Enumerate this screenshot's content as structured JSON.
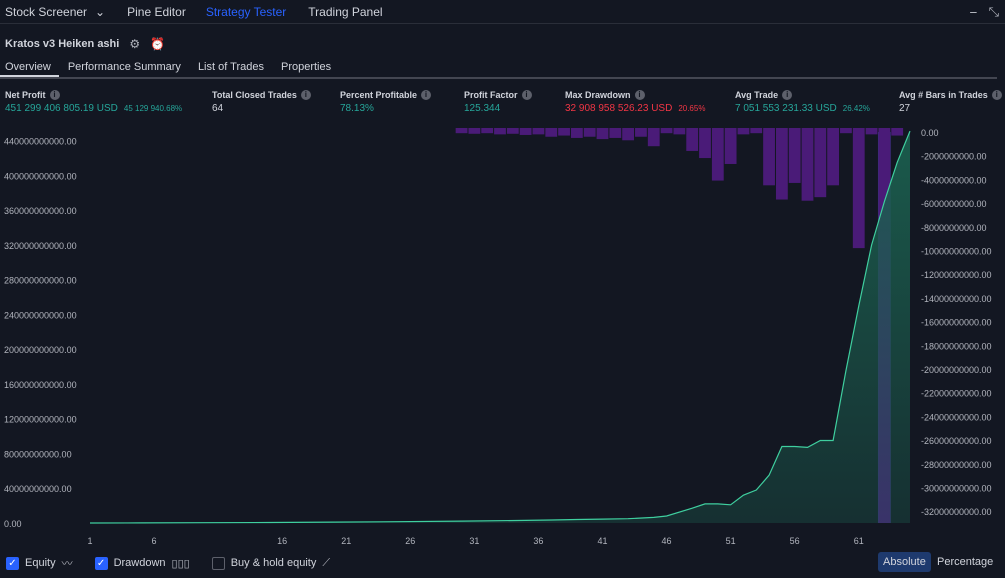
{
  "topbar": {
    "tabs": [
      {
        "label": "Stock Screener"
      },
      {
        "label": "⌄"
      },
      {
        "label": "Pine Editor"
      },
      {
        "label": "Strategy Tester"
      },
      {
        "label": "Trading Panel"
      }
    ],
    "minimize_icon": "minimize-icon",
    "collapse_icon": "collapse-icon"
  },
  "strategy": {
    "name": "Kratos v3 Heiken ashi",
    "settings_icon": "gear-icon",
    "alert_icon": "alarm-clock-icon"
  },
  "tabs": [
    {
      "label": "Overview"
    },
    {
      "label": "Performance Summary"
    },
    {
      "label": "List of Trades"
    },
    {
      "label": "Properties"
    }
  ],
  "metrics": {
    "net_profit": {
      "label": "Net Profit",
      "value": "451 299 406 805.19 USD",
      "sub": "45 129 940.68%"
    },
    "closed_trades": {
      "label": "Total Closed Trades",
      "value": "64"
    },
    "percent_profitable": {
      "label": "Percent Profitable",
      "value": "78.13%"
    },
    "profit_factor": {
      "label": "Profit Factor",
      "value": "125.344"
    },
    "max_drawdown": {
      "label": "Max Drawdown",
      "value": "32 908 958 526.23 USD",
      "sub": "20.65%"
    },
    "avg_trade": {
      "label": "Avg Trade",
      "value": "7 051 553 231.33 USD",
      "sub": "26.42%"
    },
    "avg_bars": {
      "label": "Avg # Bars in Trades",
      "value": "27"
    }
  },
  "colors": {
    "equity_line": "#3fcf9f",
    "equity_fill": "#1b5e4e",
    "drawdown": "#4a1b78",
    "highlight": "#3d3a8c",
    "accent": "#2962ff",
    "positive": "#26a69a",
    "negative": "#f23645"
  },
  "chart_data": {
    "type": "area",
    "x_ticks": [
      "1",
      "6",
      "16",
      "21",
      "26",
      "31",
      "36",
      "41",
      "46",
      "51",
      "56",
      "61"
    ],
    "y_left_ticks": [
      "440000000000.00",
      "400000000000.00",
      "360000000000.00",
      "320000000000.00",
      "280000000000.00",
      "240000000000.00",
      "200000000000.00",
      "160000000000.00",
      "120000000000.00",
      "80000000000.00",
      "40000000000.00",
      "0.00"
    ],
    "y_right_ticks": [
      "0.00",
      "-2000000000.00",
      "-4000000000.00",
      "-6000000000.00",
      "-8000000000.00",
      "-10000000000.00",
      "-12000000000.00",
      "-14000000000.00",
      "-16000000000.00",
      "-18000000000.00",
      "-20000000000.00",
      "-22000000000.00",
      "-24000000000.00",
      "-26000000000.00",
      "-28000000000.00",
      "-30000000000.00",
      "-32000000000.00"
    ],
    "ylim_left": [
      0,
      450000000000
    ],
    "ylim_right": [
      -33000000000,
      0
    ],
    "x_range": [
      1,
      65
    ],
    "series": [
      {
        "kind": "equity",
        "x": [
          1,
          5,
          10,
          15,
          20,
          25,
          30,
          35,
          37,
          39,
          41,
          43,
          45,
          46,
          48,
          49,
          50,
          51,
          52,
          53,
          54,
          55,
          56,
          57,
          58,
          59,
          60,
          61,
          62,
          63,
          64,
          65
        ],
        "values": [
          0,
          150000000,
          300000000,
          600000000,
          1000000000,
          1500000000,
          2200000000,
          3000000000,
          3500000000,
          4000000000,
          4500000000,
          5000000000,
          6500000000,
          8000000000,
          17000000000,
          22000000000,
          22000000000,
          21000000000,
          32000000000,
          38000000000,
          55000000000,
          88000000000,
          88000000000,
          87000000000,
          95000000000,
          95000000000,
          175000000000,
          250000000000,
          320000000000,
          370000000000,
          415000000000,
          451000000000
        ]
      },
      {
        "kind": "drawdown",
        "x": [
          30,
          31,
          32,
          33,
          34,
          35,
          36,
          37,
          38,
          39,
          40,
          41,
          42,
          43,
          44,
          45,
          46,
          47,
          48,
          49,
          50,
          51,
          52,
          53,
          54,
          55,
          56,
          57,
          58,
          59,
          60,
          61,
          62,
          63,
          64
        ],
        "values": [
          -100000000,
          -150000000,
          -100000000,
          -200000000,
          -150000000,
          -250000000,
          -200000000,
          -400000000,
          -300000000,
          -500000000,
          -400000000,
          -600000000,
          -500000000,
          -700000000,
          -400000000,
          -1200000000,
          -100000000,
          -200000000,
          -1600000000,
          -2200000000,
          -4100000000,
          -2700000000,
          -200000000,
          -100000000,
          -4500000000,
          -5700000000,
          -4300000000,
          -5800000000,
          -5500000000,
          -4500000000,
          -100000000,
          -9800000000,
          -200000000,
          -33000000000,
          -300000000
        ]
      }
    ],
    "highlight_bar_x": 63
  },
  "bottombar": {
    "equity_label": "Equity",
    "drawdown_label": "Drawdown",
    "buyhold_label": "Buy & hold equity",
    "absolute_label": "Absolute",
    "percentage_label": "Percentage"
  }
}
